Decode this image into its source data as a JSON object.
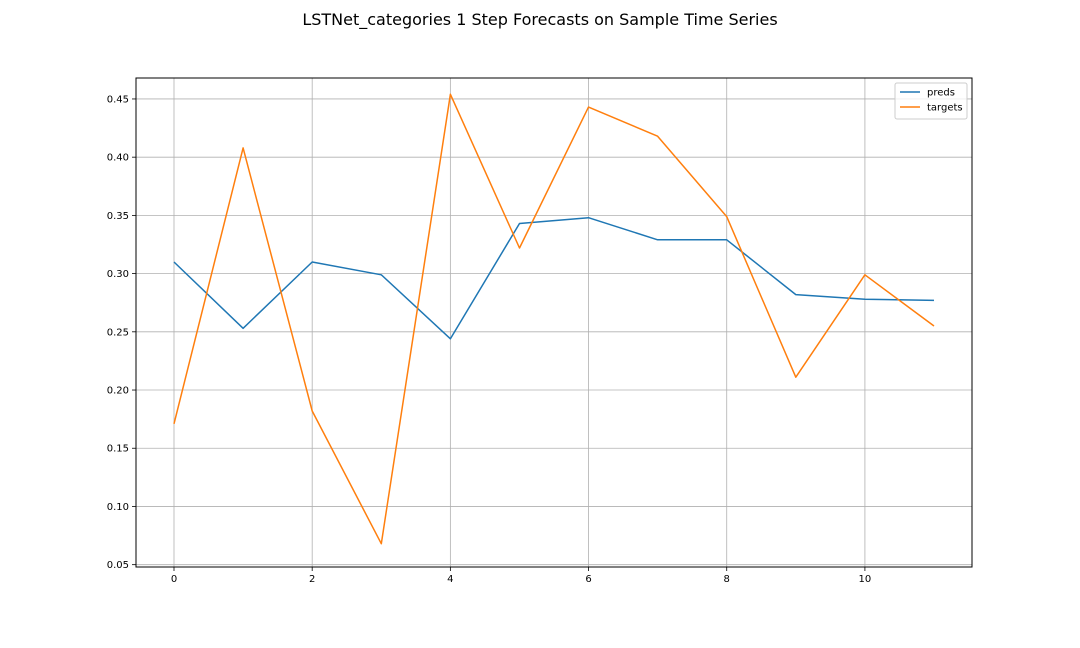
{
  "figure": {
    "title": "LSTNet_categories 1 Step Forecasts on Sample Time Series"
  },
  "chart_data": {
    "type": "line",
    "title": "LSTNet_categories 1 Step Forecasts on Sample Time Series",
    "xlabel": "",
    "ylabel": "",
    "x": [
      0,
      1,
      2,
      3,
      4,
      5,
      6,
      7,
      8,
      9,
      10,
      11
    ],
    "xlim": [
      -0.55,
      11.55
    ],
    "ylim": [
      0.048,
      0.468
    ],
    "xticks": [
      0,
      2,
      4,
      6,
      8,
      10
    ],
    "xtick_labels": [
      "0",
      "2",
      "4",
      "6",
      "8",
      "10"
    ],
    "yticks": [
      0.05,
      0.1,
      0.15,
      0.2,
      0.25,
      0.3,
      0.35,
      0.4,
      0.45
    ],
    "ytick_labels": [
      "0.05",
      "0.10",
      "0.15",
      "0.20",
      "0.25",
      "0.30",
      "0.35",
      "0.40",
      "0.45"
    ],
    "grid": true,
    "legend_position": "top-right",
    "series": [
      {
        "name": "preds",
        "color": "#1f77b4",
        "values": [
          0.31,
          0.253,
          0.31,
          0.299,
          0.244,
          0.343,
          0.348,
          0.329,
          0.329,
          0.282,
          0.278,
          0.277
        ]
      },
      {
        "name": "targets",
        "color": "#ff7f0e",
        "values": [
          0.171,
          0.408,
          0.182,
          0.068,
          0.454,
          0.322,
          0.443,
          0.418,
          0.349,
          0.211,
          0.299,
          0.255
        ]
      }
    ]
  }
}
